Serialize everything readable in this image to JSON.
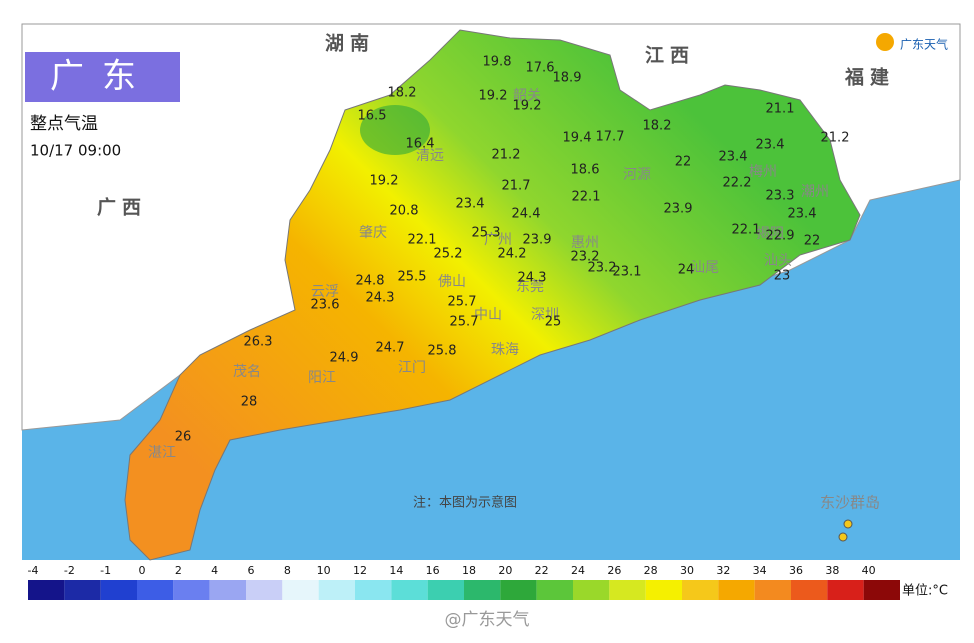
{
  "title_box": {
    "region": "广东",
    "subtitle": "整点气温",
    "time": "10/17 09:00"
  },
  "provinces": [
    "湖南",
    "江西",
    "福建",
    "广西"
  ],
  "logo": "广东天气",
  "cities": [
    "韶关",
    "清远",
    "肇庆",
    "广州",
    "惠州",
    "河源",
    "梅州",
    "潮州",
    "揭阳",
    "汕头",
    "汕尾",
    "佛山",
    "云浮",
    "东莞",
    "中山",
    "珠海",
    "深圳",
    "江门",
    "阳江",
    "茂名",
    "湛江"
  ],
  "readings": [
    19.8,
    17.6,
    18.9,
    18.2,
    19.2,
    19.2,
    16.5,
    16.4,
    19.4,
    17.7,
    18.2,
    21.1,
    21.2,
    21.2,
    22,
    23.4,
    23.4,
    19.2,
    22.2,
    21.7,
    18.6,
    22.1,
    23.3,
    23.4,
    20.8,
    23.4,
    24.4,
    23.9,
    22.1,
    25.3,
    23.9,
    22.1,
    22.9,
    22,
    25.2,
    24.2,
    23.2,
    23.2,
    23.1,
    24,
    23,
    24.8,
    25.5,
    24.3,
    24.3,
    23.6,
    25.7,
    25.7,
    25,
    26.3,
    24.9,
    24.7,
    25.8,
    28,
    26
  ],
  "note": "注：本图为示意图",
  "islands": "东沙群岛",
  "colorbar": {
    "ticks": [
      -4,
      -2,
      -1,
      0,
      2,
      4,
      6,
      8,
      10,
      12,
      14,
      16,
      18,
      20,
      22,
      24,
      26,
      28,
      30,
      32,
      34,
      36,
      38,
      40
    ],
    "colors": [
      "#14148a",
      "#1c2aa6",
      "#2040d0",
      "#3d5de6",
      "#6a7ff0",
      "#9aa6f2",
      "#c9cff7",
      "#e6f6fb",
      "#bdf0f8",
      "#8ae6f0",
      "#5cded8",
      "#3ccfb0",
      "#2cb86c",
      "#2ea83a",
      "#5cc63a",
      "#9ad82a",
      "#d6e820",
      "#f5f000",
      "#f5c81a",
      "#f5a800",
      "#f38a1f",
      "#ec5a1c",
      "#d8201a",
      "#8c0808"
    ],
    "unit": "单位:°C"
  },
  "watermark": "@广东天气"
}
